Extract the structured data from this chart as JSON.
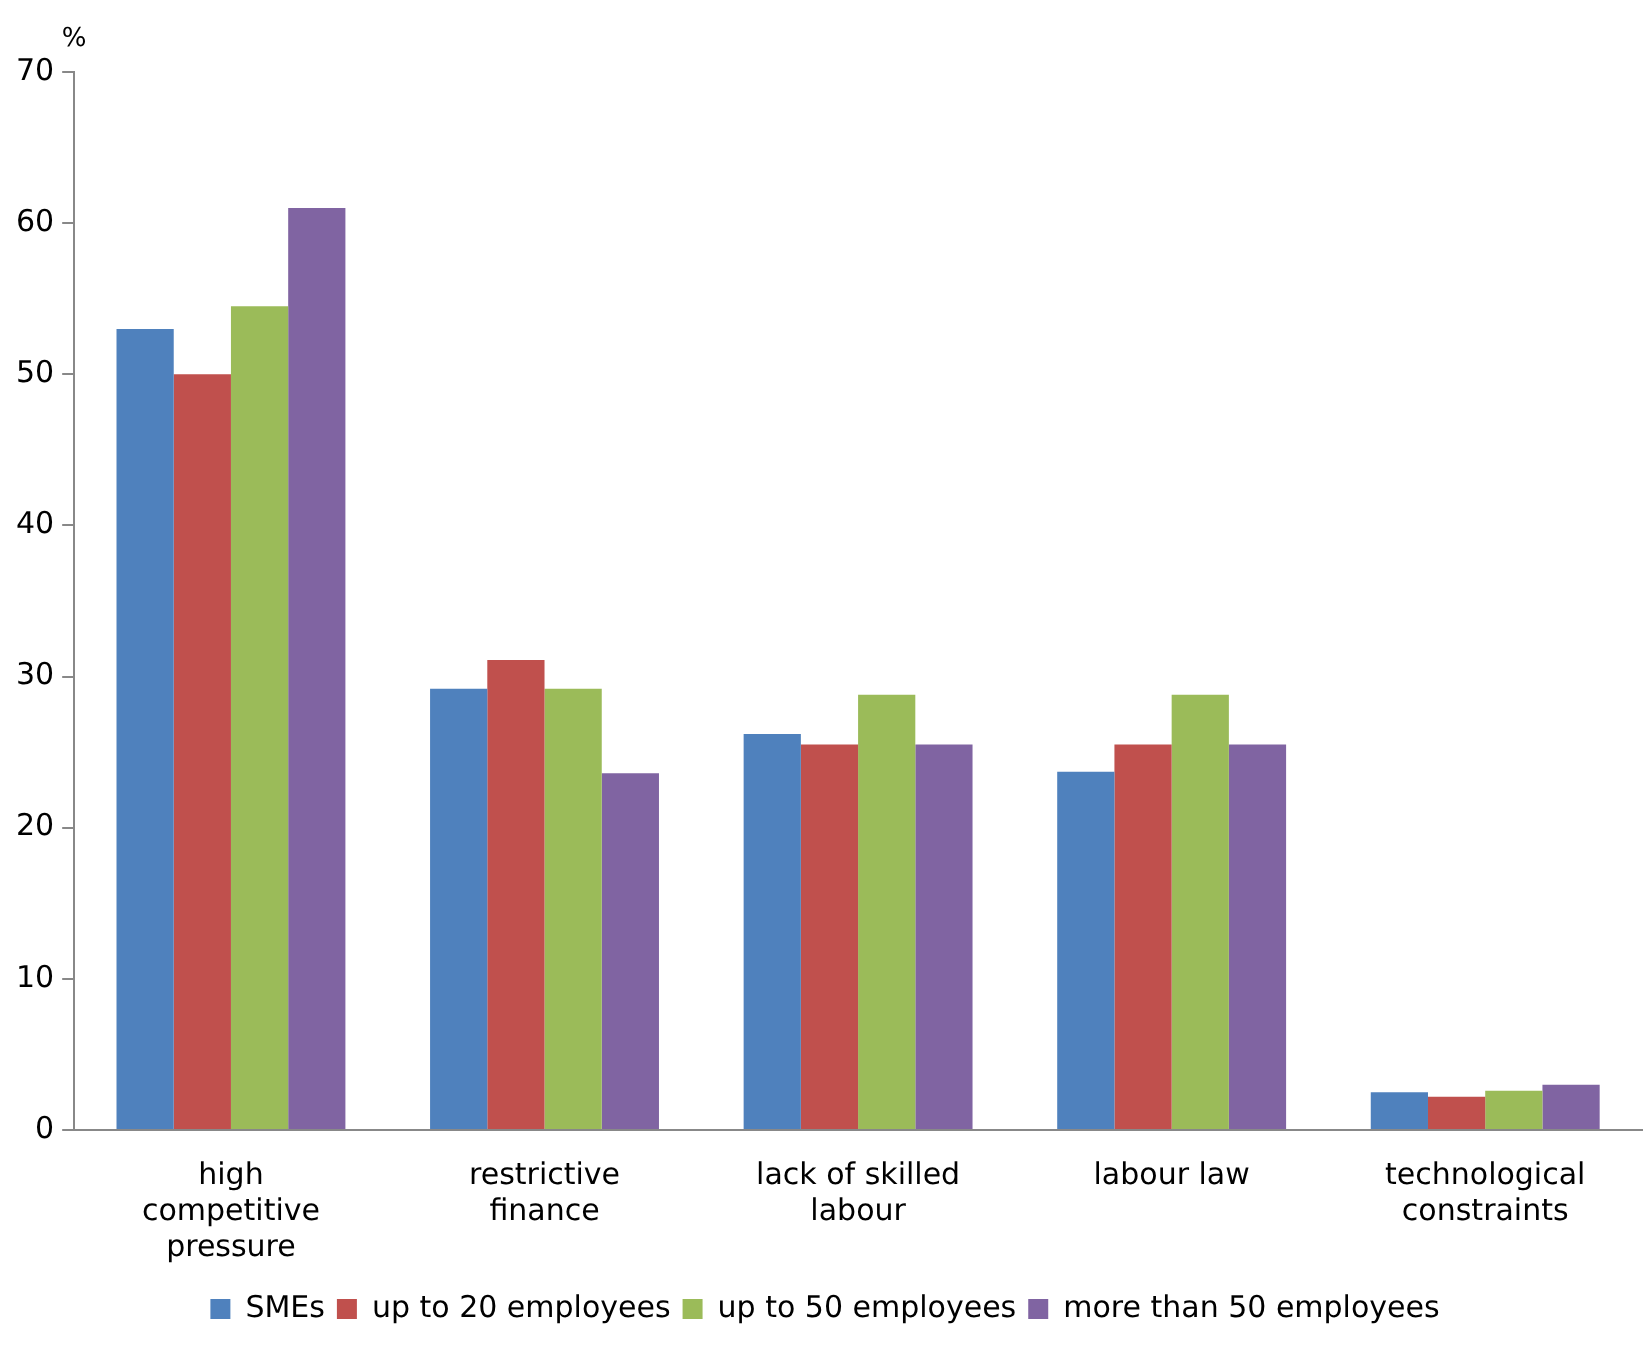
{
  "chart_data": {
    "type": "bar",
    "ylabel": "%",
    "categories": [
      "high competitive pressure",
      "restrictive finance",
      "lack of skilled labour",
      "labour law",
      "technological constraints"
    ],
    "series": [
      {
        "name": "SMEs",
        "color": "#4f81bd",
        "values": [
          53,
          29.2,
          26.2,
          23.7,
          2.5
        ]
      },
      {
        "name": "up to 20 employees",
        "color": "#c0504d",
        "values": [
          50,
          31.1,
          25.5,
          25.5,
          2.2
        ]
      },
      {
        "name": "up to 50 employees",
        "color": "#9bbb59",
        "values": [
          54.5,
          29.2,
          28.8,
          28.8,
          2.6
        ]
      },
      {
        "name": "more than 50 employees",
        "color": "#8064a2",
        "values": [
          61,
          23.6,
          25.5,
          25.5,
          3
        ]
      }
    ],
    "ylim": [
      0,
      70
    ],
    "yticks": [
      0,
      10,
      20,
      30,
      40,
      50,
      60,
      70
    ],
    "legend": "bottom"
  }
}
